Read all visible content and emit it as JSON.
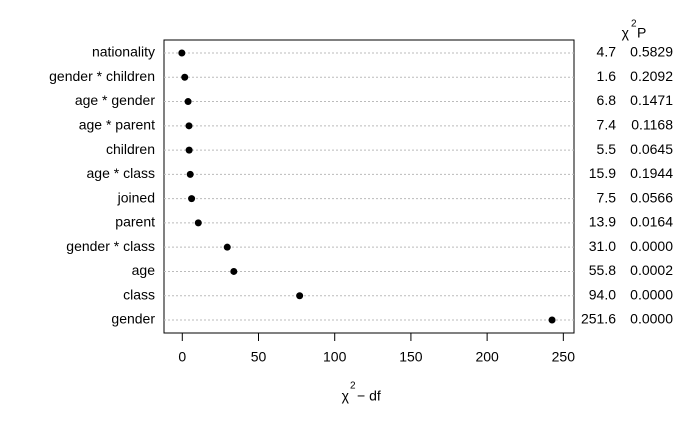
{
  "chart_data": {
    "type": "dot",
    "categories": [
      "nationality",
      "gender * children",
      "age * gender",
      "age * parent",
      "children",
      "age * class",
      "joined",
      "parent",
      "gender * class",
      "age",
      "class",
      "gender"
    ],
    "values": [
      -0.3,
      1.6,
      3.8,
      4.4,
      4.5,
      5.2,
      6.1,
      10.5,
      29.5,
      33.8,
      77,
      242.6
    ],
    "color": "#000000",
    "xlim": [
      -12,
      257
    ],
    "xticks": [
      0,
      50,
      100,
      150,
      200,
      250
    ],
    "grid": true,
    "x_label": {
      "symbol": "χ",
      "superscript": "2",
      "rest": " − df"
    },
    "column_header": {
      "symbol": "χ",
      "superscript": "2",
      "p": "P"
    },
    "chi2_column": [
      "4.7",
      "1.6",
      "6.8",
      "7.4",
      "5.5",
      "15.9",
      "7.5",
      "13.9",
      "31.0",
      "55.8",
      "94.0",
      "251.6"
    ],
    "p_column": [
      "0.5829",
      "0.2092",
      "0.1471",
      "0.1168",
      "0.0645",
      "0.1944",
      "0.0566",
      "0.0164",
      "0.0000",
      "0.0002",
      "0.0000",
      "0.0000"
    ]
  }
}
